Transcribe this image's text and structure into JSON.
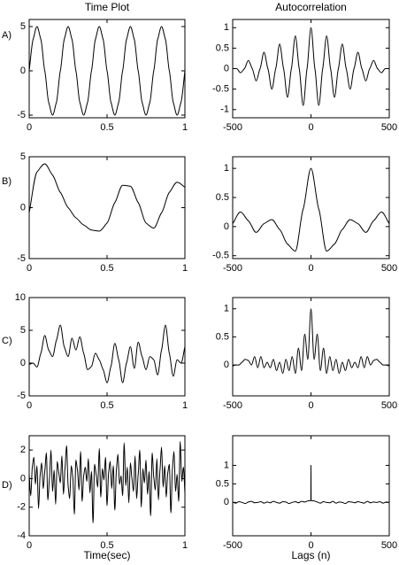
{
  "chart_data": [
    {
      "type": "line",
      "title": "Time Plot",
      "panel_label": "A)",
      "color": "#000000",
      "x": [
        0,
        0.025,
        0.05,
        0.075,
        0.1,
        0.125,
        0.15,
        0.175,
        0.2,
        0.225,
        0.25,
        0.275,
        0.3,
        0.325,
        0.35,
        0.375,
        0.4,
        0.425,
        0.45,
        0.475,
        0.5,
        0.525,
        0.55,
        0.575,
        0.6,
        0.625,
        0.65,
        0.675,
        0.7,
        0.725,
        0.75,
        0.775,
        0.8,
        0.825,
        0.85,
        0.875,
        0.9,
        0.925,
        0.95,
        0.975,
        1
      ],
      "values": [
        0,
        3.54,
        5,
        3.54,
        0,
        -3.54,
        -5,
        -3.54,
        0,
        3.54,
        5,
        3.54,
        0,
        -3.54,
        -5,
        -3.54,
        0,
        3.54,
        5,
        3.54,
        0,
        -3.54,
        -5,
        -3.54,
        0,
        3.54,
        5,
        3.54,
        0,
        -3.54,
        -5,
        -3.54,
        0,
        3.54,
        5,
        3.54,
        0,
        -3.54,
        -5,
        -3.54,
        0
      ],
      "xlim": [
        0,
        1
      ],
      "xticks": [
        0,
        0.5,
        1
      ],
      "ylim": [
        -5.3,
        5.8
      ],
      "yticks": [
        -5,
        0,
        5
      ]
    },
    {
      "type": "line",
      "title": "Autocorrelation",
      "color": "#000000",
      "x": [
        -500,
        -475,
        -450,
        -425,
        -400,
        -375,
        -350,
        -325,
        -300,
        -275,
        -250,
        -225,
        -200,
        -175,
        -150,
        -125,
        -100,
        -75,
        -50,
        -25,
        0,
        25,
        50,
        75,
        100,
        125,
        150,
        175,
        200,
        225,
        250,
        275,
        300,
        325,
        350,
        375,
        400,
        425,
        450,
        475,
        500
      ],
      "values": [
        0,
        0,
        -0.1,
        0,
        0.2,
        0,
        -0.3,
        0,
        0.4,
        0,
        -0.5,
        0,
        0.6,
        0,
        -0.7,
        0,
        0.8,
        0,
        -0.9,
        0,
        1,
        0,
        -0.9,
        0,
        0.8,
        0,
        -0.7,
        0,
        0.6,
        0,
        -0.5,
        0,
        0.4,
        0,
        -0.3,
        0,
        0.2,
        0,
        -0.1,
        0,
        0
      ],
      "xlim": [
        -500,
        500
      ],
      "xticks": [
        -500,
        0,
        500
      ],
      "ylim": [
        -1.2,
        1.2
      ],
      "yticks": [
        -1,
        -0.5,
        0,
        0.5,
        1
      ]
    },
    {
      "type": "line",
      "panel_label": "B)",
      "color": "#000000",
      "x": [
        0,
        0.05,
        0.1,
        0.15,
        0.2,
        0.25,
        0.3,
        0.35,
        0.4,
        0.45,
        0.5,
        0.55,
        0.6,
        0.65,
        0.7,
        0.75,
        0.8,
        0.85,
        0.9,
        0.95,
        1
      ],
      "values": [
        -0.5,
        3.5,
        4.3,
        3.2,
        1.5,
        0,
        -1,
        -1.7,
        -2.2,
        -2.3,
        -1.5,
        0.5,
        2.2,
        2.1,
        0.5,
        -1.5,
        -2,
        -0.5,
        1.5,
        2.5,
        2
      ],
      "xlim": [
        0,
        1
      ],
      "xticks": [
        0,
        0.5,
        1
      ],
      "ylim": [
        -5,
        5
      ],
      "yticks": [
        -5,
        0,
        5
      ]
    },
    {
      "type": "line",
      "color": "#000000",
      "x": [
        -500,
        -450,
        -400,
        -350,
        -300,
        -250,
        -200,
        -150,
        -100,
        -50,
        0,
        50,
        100,
        150,
        200,
        250,
        300,
        350,
        400,
        450,
        500
      ],
      "values": [
        0.05,
        0.25,
        0.1,
        -0.1,
        0.05,
        0.12,
        -0.05,
        -0.3,
        -0.42,
        0.3,
        1,
        0.3,
        -0.42,
        -0.3,
        -0.05,
        0.12,
        0.05,
        -0.1,
        0.1,
        0.25,
        0.05
      ],
      "xlim": [
        -500,
        500
      ],
      "xticks": [
        -500,
        0,
        500
      ],
      "ylim": [
        -0.55,
        1.2
      ],
      "yticks": [
        -0.5,
        0,
        0.5,
        1
      ]
    },
    {
      "type": "line",
      "panel_label": "C)",
      "color": "#000000",
      "x": [
        0,
        0.025,
        0.05,
        0.075,
        0.1,
        0.125,
        0.15,
        0.175,
        0.2,
        0.225,
        0.25,
        0.275,
        0.3,
        0.325,
        0.35,
        0.375,
        0.4,
        0.425,
        0.45,
        0.475,
        0.5,
        0.525,
        0.55,
        0.575,
        0.6,
        0.625,
        0.65,
        0.675,
        0.7,
        0.725,
        0.75,
        0.775,
        0.8,
        0.825,
        0.85,
        0.875,
        0.9,
        0.925,
        0.95,
        0.975,
        1
      ],
      "values": [
        -0.2,
        0,
        -0.6,
        1.5,
        4.2,
        2,
        1,
        3.5,
        5.8,
        2.5,
        1,
        3.8,
        2,
        4,
        1.5,
        -1,
        -0.5,
        1.5,
        0.5,
        -1,
        -3,
        -0.5,
        3,
        0.5,
        -3,
        0,
        2.5,
        -0.8,
        3.2,
        1,
        -1,
        1,
        0.5,
        -1.8,
        2,
        5.8,
        1.5,
        -2,
        0.5,
        0,
        2.5
      ],
      "xlim": [
        0,
        1
      ],
      "xticks": [
        0,
        0.5,
        1
      ],
      "ylim": [
        -5,
        10
      ],
      "yticks": [
        -5,
        0,
        5,
        10
      ]
    },
    {
      "type": "line",
      "color": "#000000",
      "x": [
        -500,
        -480,
        -460,
        -440,
        -420,
        -400,
        -380,
        -360,
        -340,
        -320,
        -300,
        -280,
        -260,
        -240,
        -220,
        -200,
        -180,
        -160,
        -140,
        -120,
        -100,
        -80,
        -60,
        -40,
        -20,
        0,
        20,
        40,
        60,
        80,
        100,
        120,
        140,
        160,
        180,
        200,
        220,
        240,
        260,
        280,
        300,
        320,
        340,
        360,
        380,
        400,
        420,
        440,
        460,
        480,
        500
      ],
      "values": [
        -0.02,
        0,
        0,
        0.05,
        0.1,
        0.08,
        0,
        0.15,
        -0.05,
        0.15,
        -0.05,
        0.05,
        -0.05,
        0.1,
        -0.1,
        0.05,
        -0.15,
        0.1,
        -0.1,
        0.15,
        -0.15,
        0.3,
        -0.1,
        0.55,
        0.1,
        1,
        0.1,
        0.55,
        -0.1,
        0.3,
        -0.15,
        0.15,
        -0.1,
        0.1,
        -0.15,
        0.05,
        -0.1,
        0.1,
        -0.05,
        0.05,
        -0.05,
        0.15,
        -0.05,
        0.15,
        0,
        0.08,
        0.1,
        0.05,
        0,
        0,
        -0.02
      ],
      "xlim": [
        -500,
        500
      ],
      "xticks": [
        -500,
        0,
        500
      ],
      "ylim": [
        -0.55,
        1.2
      ],
      "yticks": [
        0,
        0.5,
        1
      ]
    },
    {
      "type": "line",
      "panel_label": "D)",
      "x_label": "Time(sec)",
      "color": "#000000",
      "x": [
        0,
        0.01,
        0.02,
        0.03,
        0.04,
        0.05,
        0.06,
        0.07,
        0.08,
        0.09,
        0.1,
        0.11,
        0.12,
        0.13,
        0.14,
        0.15,
        0.16,
        0.17,
        0.18,
        0.19,
        0.2,
        0.21,
        0.22,
        0.23,
        0.24,
        0.25,
        0.26,
        0.27,
        0.28,
        0.29,
        0.3,
        0.31,
        0.32,
        0.33,
        0.34,
        0.35,
        0.36,
        0.37,
        0.38,
        0.39,
        0.4,
        0.41,
        0.42,
        0.43,
        0.44,
        0.45,
        0.46,
        0.47,
        0.48,
        0.49,
        0.5,
        0.51,
        0.52,
        0.53,
        0.54,
        0.55,
        0.56,
        0.57,
        0.58,
        0.59,
        0.6,
        0.61,
        0.62,
        0.63,
        0.64,
        0.65,
        0.66,
        0.67,
        0.68,
        0.69,
        0.7,
        0.71,
        0.72,
        0.73,
        0.74,
        0.75,
        0.76,
        0.77,
        0.78,
        0.79,
        0.8,
        0.81,
        0.82,
        0.83,
        0.84,
        0.85,
        0.86,
        0.87,
        0.88,
        0.89,
        0.9,
        0.91,
        0.92,
        0.93,
        0.94,
        0.95,
        0.96,
        0.97,
        0.98,
        0.99,
        1
      ],
      "values": [
        0.3,
        -1.2,
        0.8,
        1.5,
        -0.4,
        0.9,
        -2.1,
        0.2,
        1.1,
        -0.7,
        0.5,
        1.8,
        -1.5,
        0,
        2,
        -0.9,
        0.6,
        -1.8,
        1.2,
        0.4,
        -0.3,
        1.6,
        -1.1,
        0.7,
        2.3,
        -0.5,
        -1.4,
        0.9,
        0.1,
        -2.5,
        1.3,
        0.6,
        -0.8,
        1.9,
        -1.6,
        0.2,
        0.8,
        -0.2,
        1.4,
        -1,
        0.5,
        -3.1,
        1,
        0.3,
        -0.6,
        2.1,
        -1.3,
        0.7,
        -0.1,
        1.5,
        -1.9,
        0.4,
        1.2,
        -0.7,
        0.9,
        -2.2,
        0.6,
        1.7,
        -0.4,
        0.2,
        -1.2,
        2.5,
        -0.5,
        0.8,
        -1.7,
        1.1,
        0,
        -0.9,
        1.6,
        -1.4,
        0.3,
        2,
        -2,
        0.7,
        -0.3,
        1.3,
        -1.1,
        0.5,
        -2.6,
        1.8,
        0.1,
        -0.8,
        1.4,
        -1.5,
        0.6,
        2.2,
        -0.6,
        0.9,
        -1.3,
        0.4,
        1,
        -2.4,
        0.7,
        1.9,
        -0.9,
        0.3,
        -1.6,
        2.6,
        -0.2,
        0.8,
        -1
      ],
      "xlim": [
        0,
        1
      ],
      "xticks": [
        0,
        0.5,
        1
      ],
      "ylim": [
        -4,
        3
      ],
      "yticks": [
        -4,
        -2,
        0,
        2
      ]
    },
    {
      "type": "line",
      "x_label": "Lags (n)",
      "color": "#000000",
      "x": [
        -500,
        -480,
        -460,
        -440,
        -420,
        -400,
        -380,
        -360,
        -340,
        -320,
        -300,
        -280,
        -260,
        -240,
        -220,
        -200,
        -180,
        -160,
        -140,
        -120,
        -100,
        -80,
        -60,
        -40,
        -20,
        -1,
        0,
        1,
        20,
        40,
        60,
        80,
        100,
        120,
        140,
        160,
        180,
        200,
        220,
        240,
        260,
        280,
        300,
        320,
        340,
        360,
        380,
        400,
        420,
        440,
        460,
        480,
        500
      ],
      "values": [
        0.01,
        -0.02,
        0.02,
        0,
        -0.03,
        0.01,
        0.03,
        -0.01,
        0,
        0.02,
        -0.02,
        0.01,
        -0.01,
        0.03,
        0,
        -0.02,
        0.02,
        0.01,
        -0.03,
        0,
        0.02,
        -0.01,
        0.03,
        0.01,
        0.04,
        0.05,
        1,
        0.05,
        0.04,
        0.01,
        -0.02,
        0.02,
        0,
        -0.01,
        0.03,
        -0.02,
        0.01,
        0,
        -0.03,
        0.02,
        0.01,
        -0.01,
        0.02,
        0,
        -0.02,
        0.03,
        -0.01,
        0.01,
        0,
        0.02,
        -0.02,
        0.01,
        0
      ],
      "xlim": [
        -500,
        500
      ],
      "xticks": [
        -500,
        0,
        500
      ],
      "ylim": [
        -0.9,
        1.8
      ],
      "yticks": [
        0,
        0.5,
        1
      ]
    }
  ]
}
